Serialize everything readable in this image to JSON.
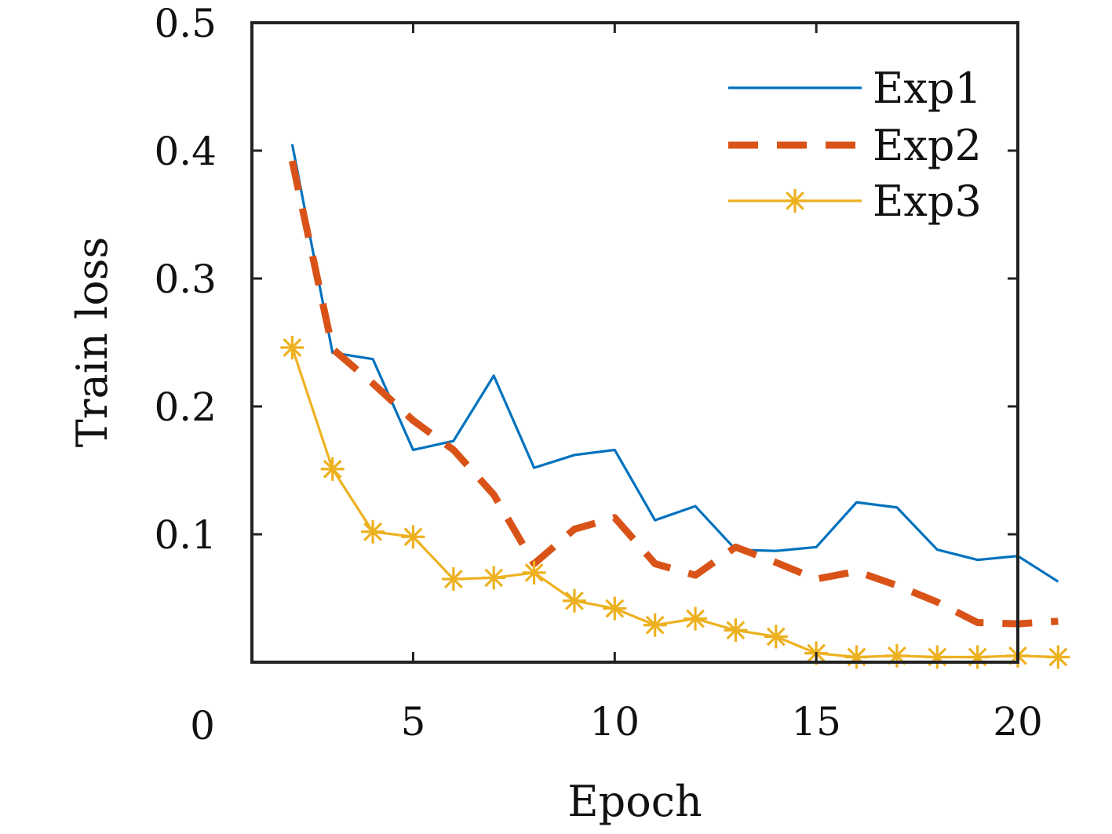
{
  "chart_data": {
    "type": "line",
    "xlabel": "Epoch",
    "ylabel": "Train loss",
    "xlim": [
      1,
      20
    ],
    "ylim": [
      0,
      0.5
    ],
    "xticks": [
      5,
      10,
      15,
      20
    ],
    "xtick_labels": [
      "5",
      "10",
      "15",
      "20"
    ],
    "yticks": [
      0.1,
      0.2,
      0.3,
      0.4,
      0.5
    ],
    "ytick_labels": [
      "0.1",
      "0.2",
      "0.3",
      "0.4",
      "0.5"
    ],
    "origin_label": "0",
    "grid": false,
    "legend": "top-right",
    "x": [
      2,
      3,
      4,
      5,
      6,
      7,
      8,
      9,
      10,
      11,
      12,
      13,
      14,
      15,
      16,
      17,
      18,
      19,
      20,
      21
    ],
    "series": [
      {
        "name": "Exp1",
        "color": "#0072BD",
        "style": "solid",
        "marker": "none",
        "values": [
          0.405,
          0.242,
          0.237,
          0.166,
          0.173,
          0.224,
          0.152,
          0.162,
          0.166,
          0.111,
          0.122,
          0.088,
          0.087,
          0.09,
          0.125,
          0.121,
          0.088,
          0.08,
          0.083,
          0.063
        ]
      },
      {
        "name": "Exp2",
        "color": "#D95319",
        "style": "dashed",
        "marker": "none",
        "values": [
          0.392,
          0.245,
          0.218,
          0.189,
          0.166,
          0.131,
          0.077,
          0.104,
          0.113,
          0.077,
          0.068,
          0.09,
          0.078,
          0.065,
          0.071,
          0.06,
          0.047,
          0.031,
          0.03,
          0.032
        ]
      },
      {
        "name": "Exp3",
        "color": "#EDB120",
        "style": "solid",
        "marker": "asterisk",
        "values": [
          0.246,
          0.151,
          0.102,
          0.098,
          0.065,
          0.066,
          0.07,
          0.048,
          0.042,
          0.029,
          0.034,
          0.025,
          0.02,
          0.007,
          0.004,
          0.005,
          0.004,
          0.004,
          0.005,
          0.004
        ]
      }
    ]
  }
}
